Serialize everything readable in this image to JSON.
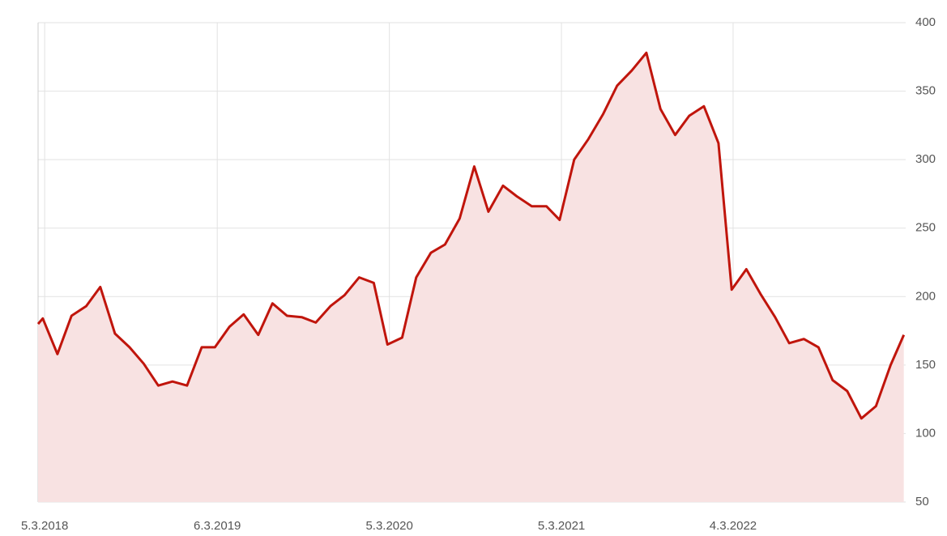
{
  "chart_data": {
    "type": "area",
    "x": [
      "2018-02-19",
      "2018-03-01",
      "2018-04-01",
      "2018-05-01",
      "2018-06-01",
      "2018-07-01",
      "2018-08-01",
      "2018-09-01",
      "2018-10-01",
      "2018-11-01",
      "2018-12-01",
      "2019-01-01",
      "2019-02-01",
      "2019-03-01",
      "2019-04-01",
      "2019-05-01",
      "2019-06-01",
      "2019-07-01",
      "2019-08-01",
      "2019-09-01",
      "2019-10-01",
      "2019-11-01",
      "2019-12-01",
      "2020-01-01",
      "2020-02-01",
      "2020-03-01",
      "2020-04-01",
      "2020-05-01",
      "2020-06-01",
      "2020-07-01",
      "2020-08-01",
      "2020-09-01",
      "2020-10-01",
      "2020-11-01",
      "2020-12-01",
      "2021-01-01",
      "2021-02-01",
      "2021-03-01",
      "2021-04-01",
      "2021-05-01",
      "2021-06-01",
      "2021-07-01",
      "2021-08-01",
      "2021-09-01",
      "2021-10-01",
      "2021-11-01",
      "2021-12-01",
      "2022-01-01",
      "2022-02-01",
      "2022-03-01",
      "2022-04-01",
      "2022-05-01",
      "2022-06-01",
      "2022-07-01",
      "2022-08-01",
      "2022-09-01",
      "2022-10-01",
      "2022-11-01",
      "2022-12-01",
      "2023-01-01",
      "2023-02-01",
      "2023-03-01"
    ],
    "values": [
      180,
      184,
      158,
      186,
      193,
      207,
      173,
      163,
      151,
      135,
      138,
      135,
      163,
      163,
      178,
      187,
      172,
      195,
      186,
      185,
      181,
      193,
      201,
      214,
      210,
      165,
      170,
      214,
      232,
      238,
      257,
      295,
      262,
      281,
      273,
      266,
      266,
      256,
      300,
      315,
      333,
      354,
      365,
      378,
      337,
      318,
      332,
      339,
      312,
      205,
      220,
      202,
      185,
      166,
      169,
      163,
      139,
      131,
      111,
      120,
      150,
      172
    ],
    "color": "#c0150c",
    "fill": "#f8e2e2",
    "xlim": [
      "2018-02-19",
      "2023-03-05"
    ],
    "xticks": [
      {
        "value": "2018-03-05",
        "label": "5.3.2018"
      },
      {
        "value": "2019-03-06",
        "label": "6.3.2019"
      },
      {
        "value": "2020-03-05",
        "label": "5.3.2020"
      },
      {
        "value": "2021-03-05",
        "label": "5.3.2021"
      },
      {
        "value": "2022-03-04",
        "label": "4.3.2022"
      }
    ],
    "ylim": [
      50,
      400
    ],
    "yticks": [
      50,
      100,
      150,
      200,
      250,
      300,
      350,
      400
    ],
    "grid": true
  }
}
